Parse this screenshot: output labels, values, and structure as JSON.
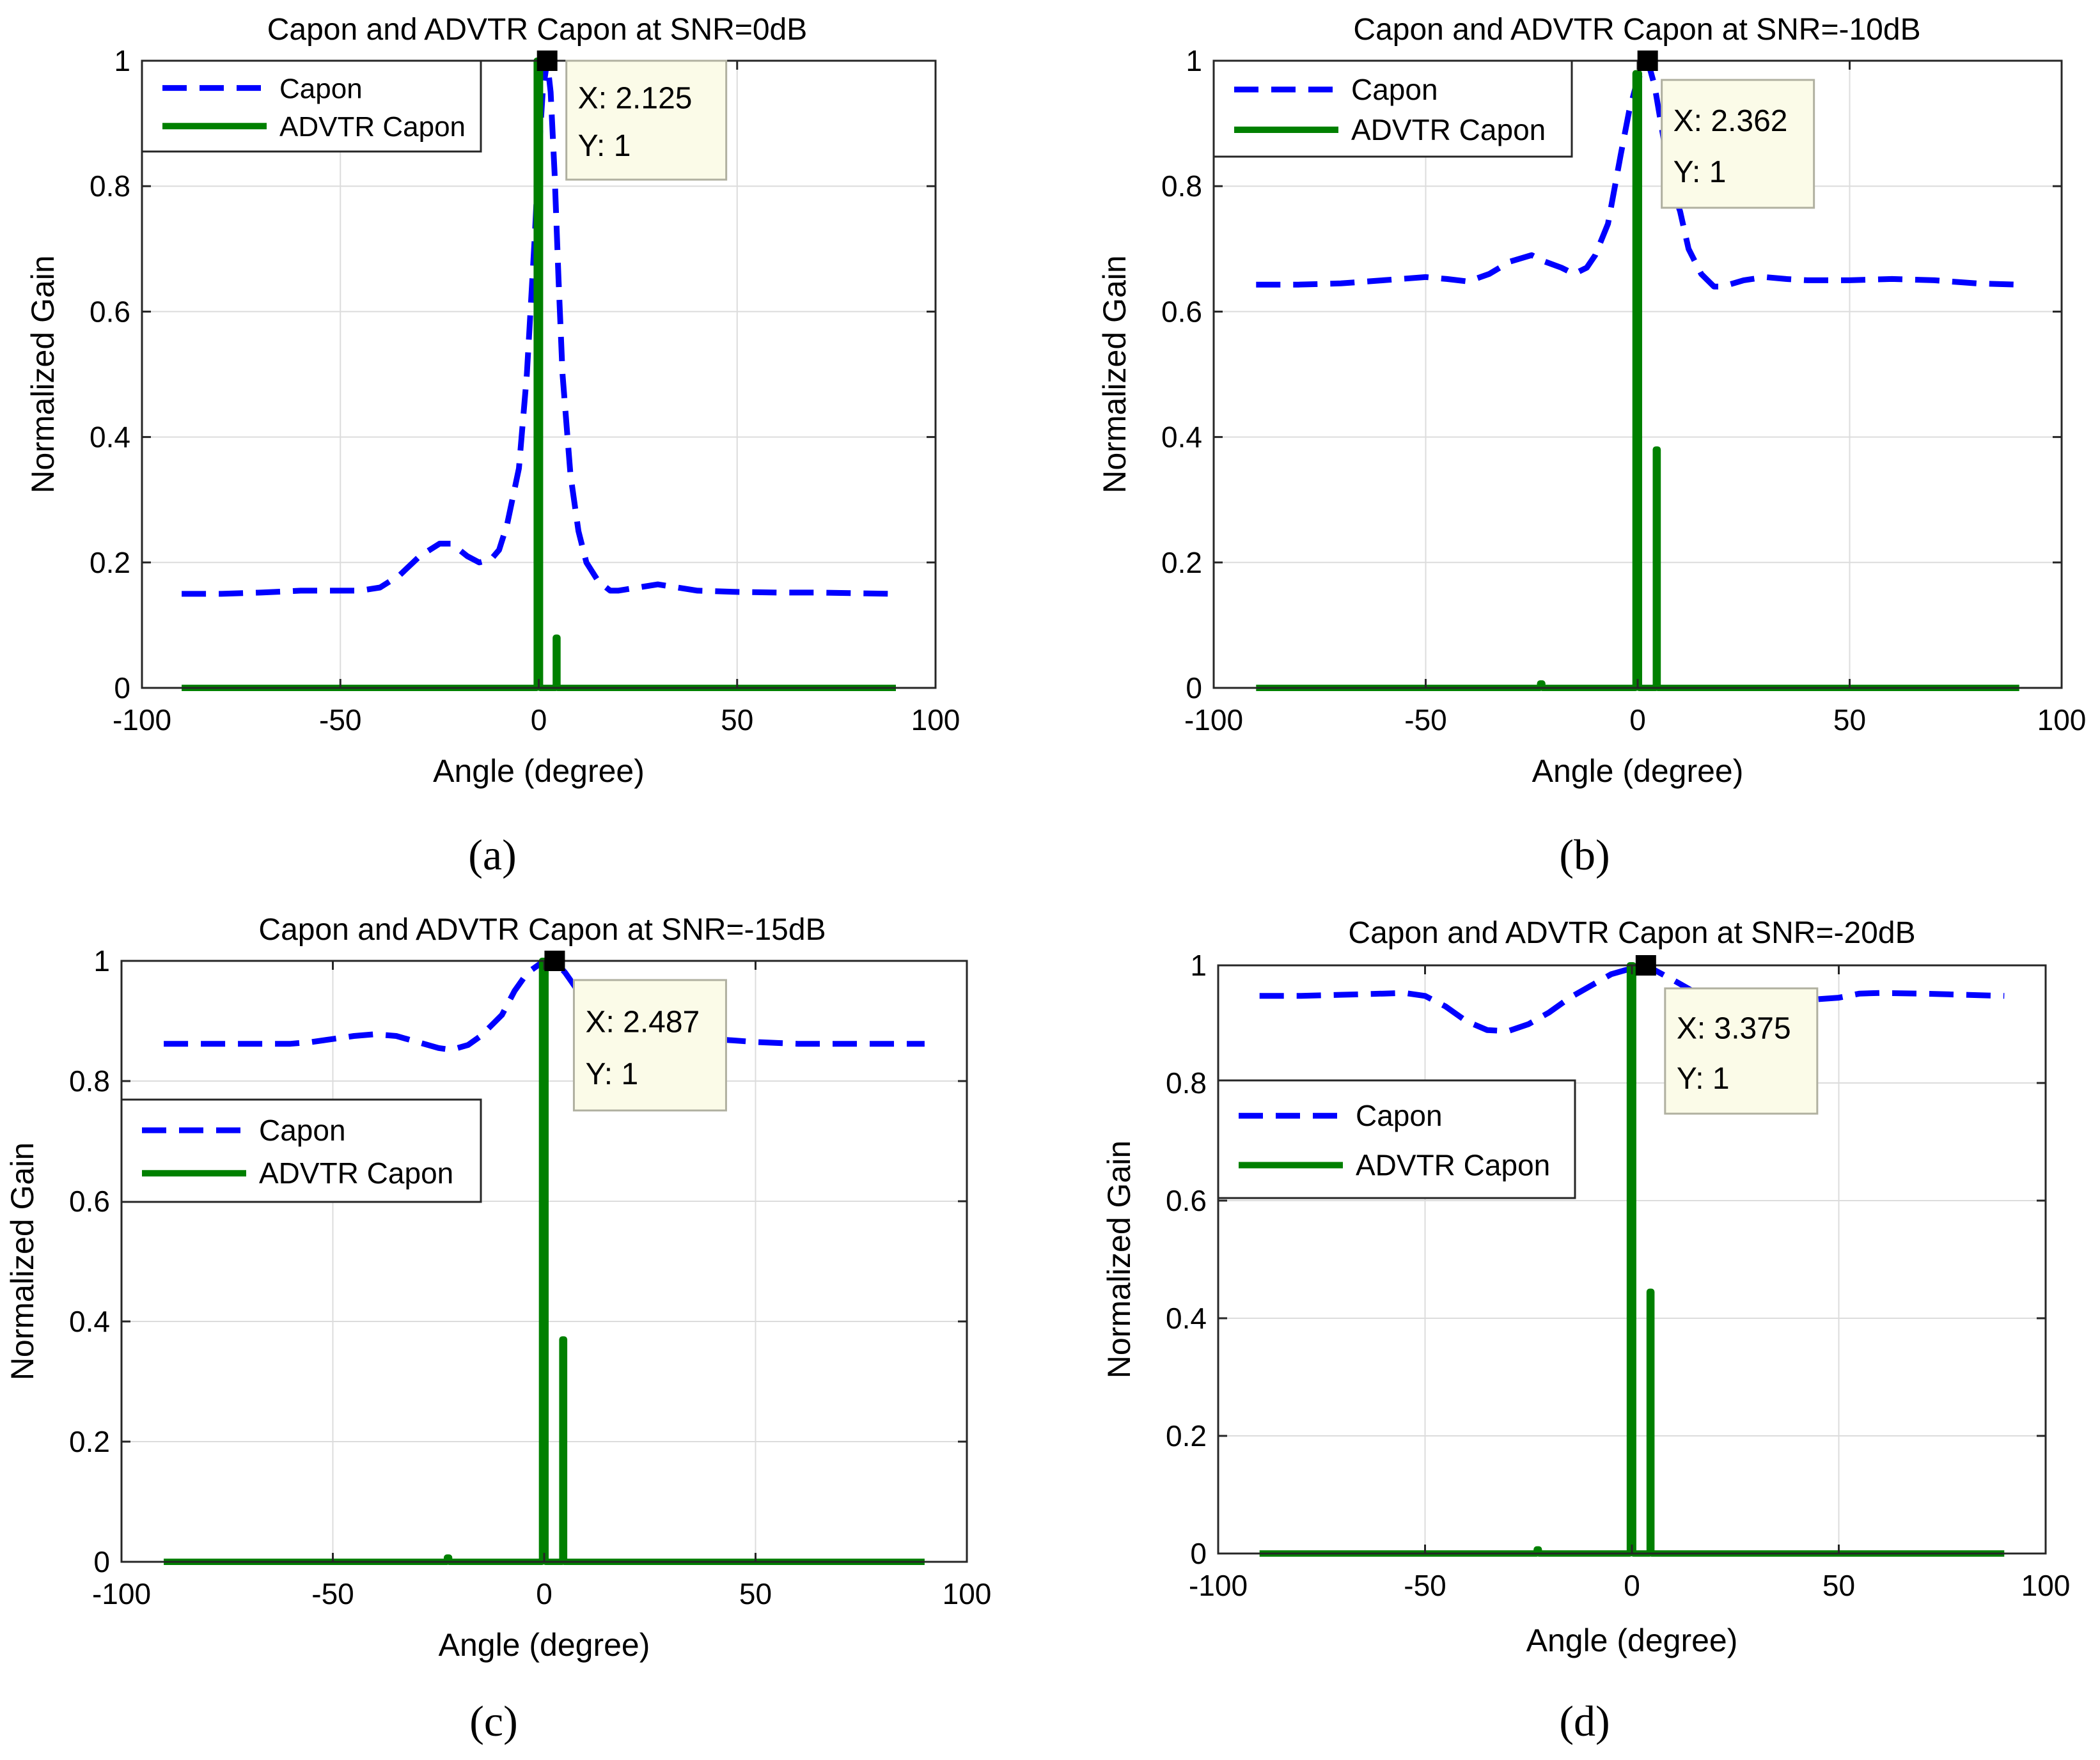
{
  "chart_data": [
    {
      "panel": "(a)",
      "type": "line",
      "title": "Capon and ADVTR Capon at SNR=0dB",
      "xlabel": "Angle (degree)",
      "ylabel": "Normalized Gain",
      "xlim": [
        -100,
        100
      ],
      "ylim": [
        0,
        1
      ],
      "xticks": [
        "-100",
        "-50",
        "0",
        "50",
        "100"
      ],
      "yticks": [
        "0",
        "0.2",
        "0.4",
        "0.6",
        "0.8",
        "1"
      ],
      "grid": true,
      "legend_position": "top-left",
      "series": [
        {
          "name": "Capon",
          "style": "dashed",
          "color": "#0000ff",
          "x": [
            -90,
            -80,
            -70,
            -60,
            -50,
            -45,
            -40,
            -35,
            -30,
            -25,
            -22,
            -18,
            -15,
            -12,
            -10,
            -8,
            -5,
            -3,
            -1,
            0,
            1,
            2.125,
            3,
            4,
            5,
            6,
            8,
            10,
            12,
            15,
            18,
            20,
            25,
            30,
            35,
            40,
            50,
            60,
            70,
            80,
            90
          ],
          "y": [
            0.15,
            0.15,
            0.152,
            0.155,
            0.155,
            0.155,
            0.16,
            0.18,
            0.21,
            0.23,
            0.23,
            0.21,
            0.2,
            0.205,
            0.22,
            0.26,
            0.35,
            0.5,
            0.72,
            0.85,
            0.95,
            1.0,
            0.95,
            0.82,
            0.65,
            0.5,
            0.34,
            0.25,
            0.2,
            0.17,
            0.155,
            0.155,
            0.16,
            0.165,
            0.16,
            0.155,
            0.153,
            0.152,
            0.152,
            0.151,
            0.15
          ]
        },
        {
          "name": "ADVTR Capon",
          "style": "solid",
          "color": "#008000",
          "x": [
            -90,
            -0.5,
            -0.5,
            0.3,
            0.3,
            4.3,
            4.3,
            4.7,
            4.7,
            90
          ],
          "y": [
            0,
            0,
            1,
            1,
            0,
            0,
            0.08,
            0.08,
            0,
            0
          ]
        }
      ],
      "datatip": {
        "x_label": "X: 2.125",
        "y_label": "Y: 1",
        "x": 2.125,
        "y": 1
      }
    },
    {
      "panel": "(b)",
      "type": "line",
      "title": "Capon and ADVTR Capon at SNR=-10dB",
      "xlabel": "Angle (degree)",
      "ylabel": "Normalized Gain",
      "xlim": [
        -100,
        100
      ],
      "ylim": [
        0,
        1
      ],
      "xticks": [
        "-100",
        "-50",
        "0",
        "50",
        "100"
      ],
      "yticks": [
        "0",
        "0.2",
        "0.4",
        "0.6",
        "0.8",
        "1"
      ],
      "grid": true,
      "legend_position": "top-left",
      "series": [
        {
          "name": "Capon",
          "style": "dashed",
          "color": "#0000ff",
          "x": [
            -90,
            -80,
            -70,
            -60,
            -50,
            -45,
            -40,
            -35,
            -30,
            -25,
            -22,
            -18,
            -15,
            -12,
            -10,
            -7,
            -4,
            -2,
            0,
            2.362,
            4,
            6,
            8,
            10,
            12,
            15,
            18,
            20,
            25,
            30,
            35,
            40,
            50,
            60,
            70,
            80,
            90
          ],
          "y": [
            0.643,
            0.643,
            0.645,
            0.65,
            0.655,
            0.652,
            0.648,
            0.66,
            0.68,
            0.69,
            0.68,
            0.67,
            0.66,
            0.67,
            0.69,
            0.74,
            0.85,
            0.92,
            0.97,
            1.0,
            0.96,
            0.88,
            0.8,
            0.76,
            0.7,
            0.66,
            0.64,
            0.64,
            0.65,
            0.655,
            0.652,
            0.65,
            0.65,
            0.652,
            0.65,
            0.645,
            0.643
          ]
        },
        {
          "name": "ADVTR Capon",
          "style": "solid",
          "color": "#008000",
          "x": [
            -90,
            -23,
            -23,
            -22.5,
            -22.5,
            -0.5,
            -0.5,
            0.3,
            0.3,
            4.3,
            4.3,
            4.7,
            4.7,
            90
          ],
          "y": [
            0,
            0,
            0.007,
            0.007,
            0,
            0,
            0.98,
            0.98,
            0,
            0,
            0.38,
            0.38,
            0,
            0
          ]
        }
      ],
      "datatip": {
        "x_label": "X: 2.362",
        "y_label": "Y: 1",
        "x": 2.362,
        "y": 1
      }
    },
    {
      "panel": "(c)",
      "type": "line",
      "title": "Capon and ADVTR Capon at SNR=-15dB",
      "xlabel": "Angle (degree)",
      "ylabel": "Normalized Gain",
      "xlim": [
        -100,
        100
      ],
      "ylim": [
        0,
        1
      ],
      "xticks": [
        "-100",
        "-50",
        "0",
        "50",
        "100"
      ],
      "yticks": [
        "0",
        "0.2",
        "0.4",
        "0.6",
        "0.8",
        "1"
      ],
      "grid": true,
      "legend_position": "middle-left",
      "series": [
        {
          "name": "Capon",
          "style": "dashed",
          "color": "#0000ff",
          "x": [
            -90,
            -80,
            -70,
            -60,
            -55,
            -50,
            -45,
            -40,
            -35,
            -30,
            -25,
            -22,
            -18,
            -15,
            -10,
            -7,
            -4,
            -1,
            2.487,
            5,
            8,
            10,
            15,
            20,
            30,
            40,
            50,
            60,
            70,
            80,
            90
          ],
          "y": [
            0.862,
            0.862,
            0.862,
            0.862,
            0.865,
            0.87,
            0.875,
            0.878,
            0.875,
            0.865,
            0.855,
            0.852,
            0.86,
            0.875,
            0.91,
            0.95,
            0.98,
            0.995,
            1.0,
            0.98,
            0.95,
            0.93,
            0.9,
            0.88,
            0.875,
            0.87,
            0.865,
            0.862,
            0.862,
            0.862,
            0.862
          ]
        },
        {
          "name": "ADVTR Capon",
          "style": "solid",
          "color": "#008000",
          "x": [
            -90,
            -23,
            -23,
            -22.5,
            -22.5,
            -0.5,
            -0.5,
            0.3,
            0.3,
            4.3,
            4.3,
            4.7,
            4.7,
            90
          ],
          "y": [
            0,
            0,
            0.007,
            0.007,
            0,
            0,
            1,
            1,
            0,
            0,
            0.37,
            0.37,
            0,
            0
          ]
        }
      ],
      "datatip": {
        "x_label": "X: 2.487",
        "y_label": "Y: 1",
        "x": 2.487,
        "y": 1
      }
    },
    {
      "panel": "(d)",
      "type": "line",
      "title": "Capon and ADVTR Capon at SNR=-20dB",
      "xlabel": "Angle (degree)",
      "ylabel": "Normalized Gain",
      "xlim": [
        -100,
        100
      ],
      "ylim": [
        0,
        1
      ],
      "xticks": [
        "-100",
        "-50",
        "0",
        "50",
        "100"
      ],
      "yticks": [
        "0",
        "0.2",
        "0.4",
        "0.6",
        "0.8",
        "1"
      ],
      "grid": true,
      "legend_position": "middle-left",
      "series": [
        {
          "name": "Capon",
          "style": "dashed",
          "color": "#0000ff",
          "x": [
            -90,
            -80,
            -70,
            -60,
            -55,
            -50,
            -45,
            -40,
            -35,
            -30,
            -25,
            -20,
            -15,
            -10,
            -5,
            0,
            3.375,
            6,
            10,
            15,
            20,
            30,
            40,
            50,
            55,
            60,
            70,
            80,
            90
          ],
          "y": [
            0.948,
            0.948,
            0.95,
            0.952,
            0.953,
            0.948,
            0.93,
            0.905,
            0.89,
            0.888,
            0.9,
            0.92,
            0.945,
            0.965,
            0.985,
            0.995,
            1.0,
            0.99,
            0.975,
            0.955,
            0.94,
            0.935,
            0.94,
            0.945,
            0.952,
            0.953,
            0.952,
            0.95,
            0.948
          ]
        },
        {
          "name": "ADVTR Capon",
          "style": "solid",
          "color": "#008000",
          "x": [
            -90,
            -23,
            -23,
            -22.5,
            -22.5,
            -0.5,
            -0.5,
            0.3,
            0.3,
            4.3,
            4.3,
            4.7,
            4.7,
            90
          ],
          "y": [
            0,
            0,
            0.007,
            0.007,
            0,
            0,
            1,
            1,
            0,
            0,
            0.445,
            0.445,
            0,
            0
          ]
        }
      ],
      "datatip": {
        "x_label": "X: 3.375",
        "y_label": "Y: 1",
        "x": 3.375,
        "y": 1
      }
    }
  ]
}
